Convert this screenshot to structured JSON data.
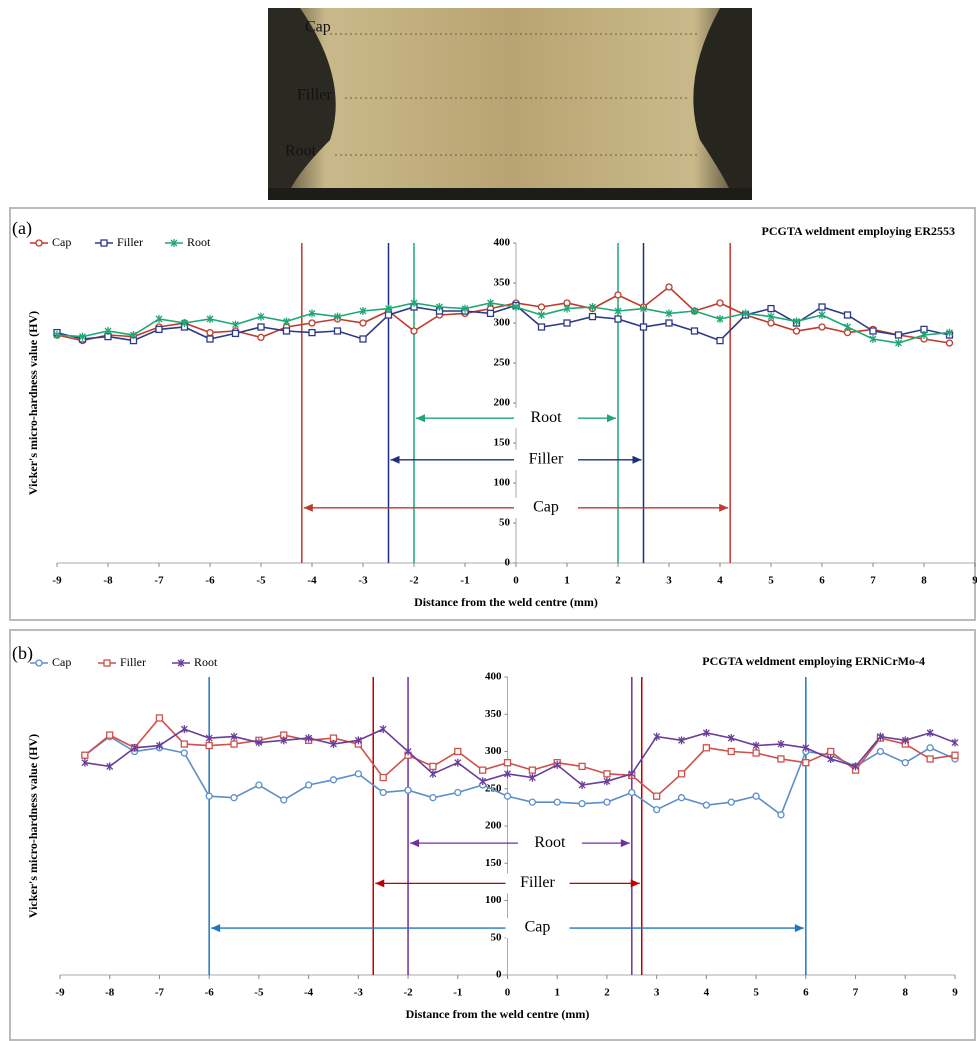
{
  "image": {
    "labels": [
      "Cap",
      "Filler",
      "Root"
    ]
  },
  "chart_data": [
    {
      "type": "line",
      "panel": "(a)",
      "title": "PCGTA weldment employing ER2553",
      "xlabel": "Distance from the weld centre (mm)",
      "ylabel": "Vicker's micro-hardness value (HV)",
      "x": [
        -9,
        -8.5,
        -8,
        -7.5,
        -7,
        -6.5,
        -6,
        -5.5,
        -5,
        -4.5,
        -4,
        -3.5,
        -3,
        -2.5,
        -2,
        -1.5,
        -1,
        -0.5,
        0,
        0.5,
        1,
        1.5,
        2,
        2.5,
        3,
        3.5,
        4,
        4.5,
        5,
        5.5,
        6,
        6.5,
        7,
        7.5,
        8,
        8.5
      ],
      "series": [
        {
          "name": "Cap",
          "color": "#c0392b",
          "marker": "circle",
          "values": [
            285,
            278,
            285,
            283,
            295,
            300,
            288,
            290,
            282,
            295,
            300,
            305,
            300,
            315,
            290,
            310,
            312,
            318,
            325,
            320,
            325,
            318,
            335,
            320,
            345,
            315,
            325,
            310,
            300,
            290,
            295,
            288,
            292,
            285,
            280,
            275
          ]
        },
        {
          "name": "Filler",
          "color": "#2e3a87",
          "marker": "square",
          "values": [
            288,
            280,
            283,
            278,
            292,
            295,
            280,
            287,
            295,
            290,
            288,
            290,
            280,
            310,
            320,
            315,
            315,
            312,
            322,
            295,
            300,
            308,
            305,
            295,
            300,
            290,
            278,
            310,
            318,
            300,
            320,
            310,
            290,
            285,
            292,
            285
          ]
        },
        {
          "name": "Root",
          "color": "#1fa774",
          "marker": "star",
          "values": [
            285,
            283,
            290,
            285,
            305,
            300,
            305,
            298,
            308,
            302,
            312,
            308,
            315,
            318,
            325,
            320,
            318,
            325,
            320,
            310,
            318,
            320,
            315,
            318,
            312,
            315,
            305,
            312,
            308,
            302,
            310,
            295,
            280,
            275,
            285,
            288
          ]
        }
      ],
      "xlim": [
        -9,
        9
      ],
      "ylim": [
        0,
        400
      ],
      "xticks": [
        -9,
        -8,
        -7,
        -6,
        -5,
        -4,
        -3,
        -2,
        -1,
        0,
        1,
        2,
        3,
        4,
        5,
        6,
        7,
        8,
        9
      ],
      "yticks": [
        0,
        50,
        100,
        150,
        200,
        250,
        300,
        350,
        400
      ],
      "zones": [
        {
          "name": "Root",
          "color": "#1fa774",
          "from": -2,
          "to": 2,
          "level": 181
        },
        {
          "name": "Filler",
          "color": "#1f2f80",
          "from": -2.5,
          "to": 2.5,
          "level": 129
        },
        {
          "name": "Cap",
          "color": "#c0392b",
          "from": -4.2,
          "to": 4.2,
          "level": 69
        }
      ]
    },
    {
      "type": "line",
      "panel": "(b)",
      "title": "PCGTA weldment employing ERNiCrMo-4",
      "xlabel": "Distance from the weld centre (mm)",
      "ylabel": "Vicker's micro-hardness value (HV)",
      "x": [
        -8.5,
        -8,
        -7.5,
        -7,
        -6.5,
        -6,
        -5.5,
        -5,
        -4.5,
        -4,
        -3.5,
        -3,
        -2.5,
        -2,
        -1.5,
        -1,
        -0.5,
        0,
        0.5,
        1,
        1.5,
        2,
        2.5,
        3,
        3.5,
        4,
        4.5,
        5,
        5.5,
        6,
        6.5,
        7,
        7.5,
        8,
        8.5,
        9
      ],
      "series": [
        {
          "name": "Cap",
          "color": "#5b8fc9",
          "marker": "circle",
          "values": [
            295,
            320,
            300,
            305,
            298,
            240,
            238,
            255,
            235,
            255,
            262,
            270,
            245,
            248,
            238,
            245,
            255,
            240,
            232,
            232,
            230,
            232,
            245,
            222,
            238,
            228,
            232,
            240,
            215,
            300,
            295,
            280,
            300,
            285,
            305,
            290
          ]
        },
        {
          "name": "Filler",
          "color": "#d0504d",
          "marker": "square",
          "values": [
            295,
            322,
            305,
            345,
            310,
            308,
            310,
            315,
            322,
            315,
            318,
            310,
            265,
            295,
            280,
            300,
            275,
            285,
            275,
            285,
            280,
            270,
            268,
            240,
            270,
            305,
            300,
            298,
            290,
            285,
            300,
            275,
            318,
            310,
            290,
            295
          ]
        },
        {
          "name": "Root",
          "color": "#6a3d9a",
          "marker": "star",
          "values": [
            285,
            280,
            305,
            308,
            330,
            318,
            320,
            312,
            315,
            318,
            310,
            315,
            330,
            300,
            270,
            285,
            260,
            270,
            265,
            282,
            255,
            260,
            270,
            320,
            315,
            325,
            318,
            308,
            310,
            305,
            290,
            280,
            320,
            315,
            325,
            312
          ]
        }
      ],
      "xlim": [
        -9,
        9
      ],
      "ylim": [
        0,
        400
      ],
      "xticks": [
        -9,
        -8,
        -7,
        -6,
        -5,
        -4,
        -3,
        -2,
        -1,
        0,
        1,
        2,
        3,
        4,
        5,
        6,
        7,
        8,
        9
      ],
      "yticks": [
        0,
        50,
        100,
        150,
        200,
        250,
        300,
        350,
        400
      ],
      "zones": [
        {
          "name": "Root",
          "color": "#7030a0",
          "from": -2,
          "to": 2.5,
          "level": 177
        },
        {
          "name": "Filler",
          "color": "#c00000",
          "from": -2.7,
          "to": 2.7,
          "level": 123
        },
        {
          "name": "Cap",
          "color": "#1f77c4",
          "from": -6,
          "to": 6,
          "level": 63
        }
      ]
    }
  ]
}
